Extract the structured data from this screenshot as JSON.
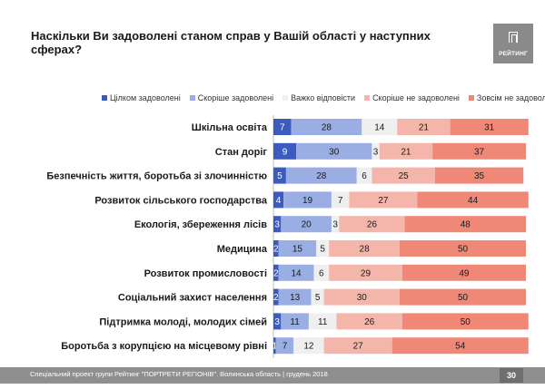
{
  "title": "Наскільки Ви задоволені станом справ у Вашій області у наступних сферах?",
  "logo_text": "РЕЙТИНГ",
  "footer": {
    "text": "Спеціальний проект групи Рейтинг \"ПОРТРЕТИ РЕГІОНІВ\". Волинська область | грудень 2018",
    "page": "30"
  },
  "chart_data": {
    "type": "bar",
    "stacked": true,
    "orientation": "horizontal",
    "title": "Наскільки Ви задоволені станом справ у Вашій області у наступних сферах?",
    "legend_position": "top",
    "categories": [
      "Шкільна освіта",
      "Стан доріг",
      "Безпечність життя, боротьба зі злочинністю",
      "Розвиток сільського господарства",
      "Екологія, збереження лісів",
      "Медицина",
      "Розвиток промисловості",
      "Соціальний захист населення",
      "Підтримка молоді, молодих сімей",
      "Боротьба з корупцією на місцевому рівні"
    ],
    "series": [
      {
        "name": "Цілком задоволені",
        "color": "#3b5bbf",
        "values": [
          7,
          9,
          5,
          4,
          3,
          2,
          2,
          2,
          3,
          1
        ]
      },
      {
        "name": "Скоріше задоволені",
        "color": "#9aaee3",
        "values": [
          28,
          30,
          28,
          19,
          20,
          15,
          14,
          13,
          11,
          7
        ]
      },
      {
        "name": "Важко відповісти",
        "color": "#efefef",
        "values": [
          14,
          3,
          6,
          7,
          3,
          5,
          6,
          5,
          11,
          12
        ]
      },
      {
        "name": "Скоріше не задоволені",
        "color": "#f4b6ab",
        "values": [
          21,
          21,
          25,
          27,
          26,
          28,
          29,
          30,
          26,
          27
        ]
      },
      {
        "name": "Зовсім не задоволені",
        "color": "#f08878",
        "values": [
          31,
          37,
          35,
          44,
          48,
          50,
          49,
          50,
          50,
          54
        ]
      }
    ],
    "xlim": [
      0,
      100
    ],
    "grid": false
  }
}
